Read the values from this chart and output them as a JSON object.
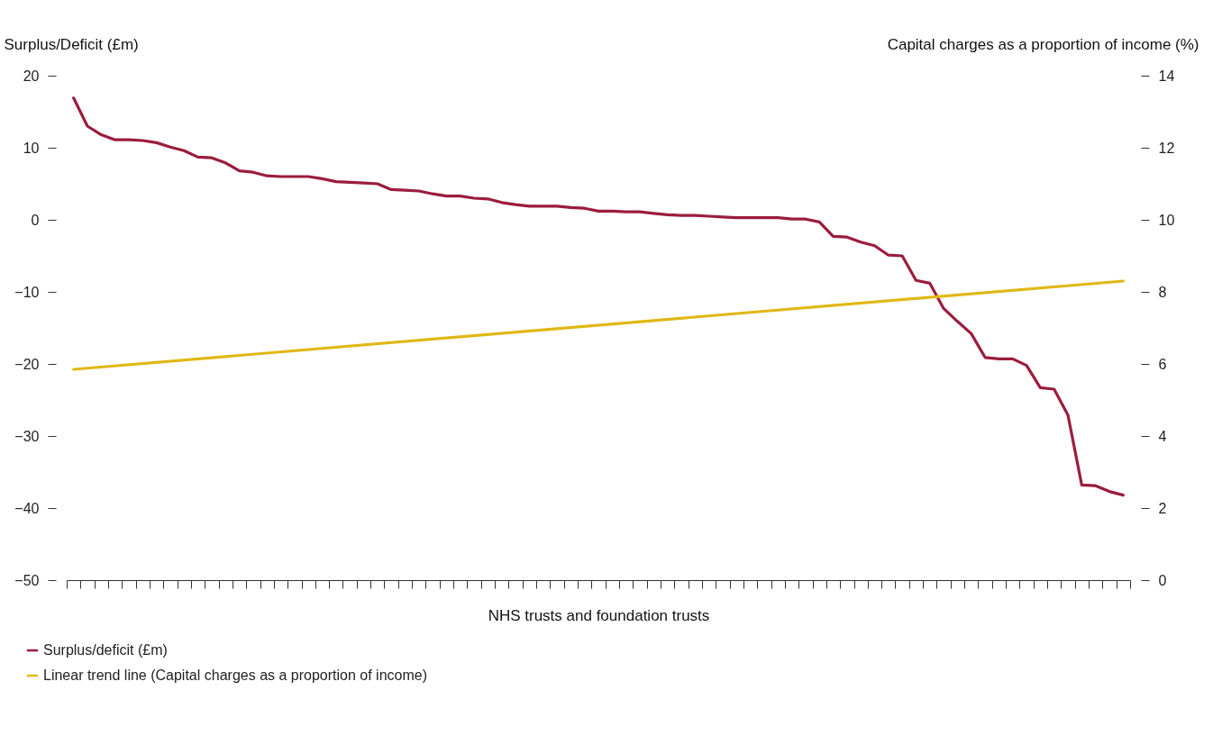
{
  "chart_data": {
    "type": "line",
    "xlabel": "NHS trusts and foundation trusts",
    "ylabel": "Surplus/Deficit (£m)",
    "y2label": "Capital charges as a proportion of income (%)",
    "categories": [
      null,
      null,
      null,
      null,
      null,
      null,
      null,
      null,
      null,
      null,
      null,
      null,
      null,
      null,
      null,
      null,
      null,
      null,
      null,
      null,
      null,
      null,
      null,
      null,
      null,
      null,
      null,
      null,
      null,
      null,
      null,
      null,
      null,
      null,
      null,
      null,
      null,
      null,
      null,
      null,
      null,
      null,
      null,
      null,
      null,
      null,
      null,
      null,
      null,
      null,
      null,
      null,
      null,
      null,
      null,
      null,
      null,
      null,
      null,
      null,
      null,
      null,
      null,
      null,
      null,
      null,
      null,
      null,
      null,
      null,
      null,
      null,
      null,
      null,
      null,
      null,
      null
    ],
    "series": [
      {
        "name": "Surplus/deficit (£m)",
        "color": "#9b1d3d",
        "values": [
          16.9,
          13.0,
          11.8,
          11.1,
          11.1,
          11.0,
          10.7,
          10.1,
          9.6,
          8.7,
          8.6,
          7.9,
          6.8,
          6.6,
          6.1,
          6.0,
          6.0,
          6.0,
          5.7,
          5.3,
          5.2,
          5.1,
          5.0,
          4.2,
          4.1,
          4.0,
          3.6,
          3.3,
          3.3,
          3.0,
          2.9,
          2.4,
          2.1,
          1.9,
          1.9,
          1.9,
          1.7,
          1.6,
          1.2,
          1.2,
          1.1,
          1.1,
          0.9,
          0.7,
          0.6,
          0.6,
          0.5,
          0.4,
          0.3,
          0.3,
          0.3,
          0.3,
          0.1,
          0.1,
          -0.3,
          -2.3,
          -2.4,
          -3.1,
          -3.6,
          -4.9,
          -5.0,
          -8.4,
          -8.8,
          -12.3,
          -14.1,
          -15.8,
          -19.1,
          -19.3,
          -19.3,
          -20.2,
          -23.3,
          -23.5,
          -27.1,
          -36.8,
          -36.9,
          -37.7,
          -38.2
        ]
      },
      {
        "name": "Linear trend line (Capital charges as a proportion of income)",
        "color": "#e0b814",
        "axis": "y2",
        "values": [
          5.85,
          null,
          null,
          null,
          null,
          null,
          null,
          null,
          null,
          null,
          null,
          null,
          null,
          null,
          null,
          null,
          null,
          null,
          null,
          null,
          null,
          null,
          null,
          null,
          null,
          null,
          null,
          null,
          null,
          null,
          null,
          null,
          null,
          null,
          null,
          null,
          null,
          null,
          null,
          null,
          null,
          null,
          null,
          null,
          null,
          null,
          null,
          null,
          null,
          null,
          null,
          null,
          null,
          null,
          null,
          null,
          null,
          null,
          null,
          null,
          null,
          null,
          null,
          null,
          null,
          null,
          null,
          null,
          null,
          null,
          null,
          null,
          null,
          null,
          null,
          null,
          8.3
        ]
      }
    ],
    "ylim": [
      -50,
      20
    ],
    "yticks": [
      -50,
      -40,
      -30,
      -20,
      -10,
      0,
      10,
      20
    ],
    "y2lim": [
      0,
      14
    ],
    "y2ticks": [
      0,
      2,
      4,
      6,
      8,
      10,
      12,
      14
    ],
    "grid": false,
    "legend": "bottom left",
    "tick_labels": "y",
    "line_style": "solid"
  }
}
